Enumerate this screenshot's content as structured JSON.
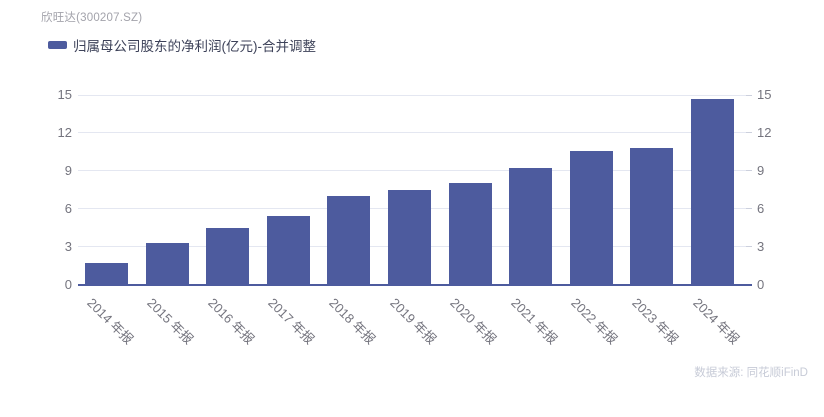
{
  "header": {
    "title": "欣旺达(300207.SZ)"
  },
  "legend": {
    "label": "归属母公司股东的净利润(亿元)-合并调整"
  },
  "footer": {
    "source_note": "数据来源: 同花顺iFinD"
  },
  "chart_data": {
    "type": "bar",
    "title": "欣旺达(300207.SZ)",
    "series_name": "归属母公司股东的净利润(亿元)-合并调整",
    "categories": [
      "2014 年报",
      "2015 年报",
      "2016 年报",
      "2017 年报",
      "2018 年报",
      "2019 年报",
      "2020 年报",
      "2021 年报",
      "2022 年报",
      "2023 年报",
      "2024 年报"
    ],
    "values": [
      1.7,
      3.3,
      4.5,
      5.4,
      7.0,
      7.5,
      8.0,
      9.2,
      10.6,
      10.8,
      14.7
    ],
    "xlabel": "",
    "ylabel": "",
    "ylim": [
      0,
      15
    ],
    "yticks": [
      0,
      3,
      6,
      9,
      12,
      15
    ],
    "y_axis_sides": "both",
    "grid": true,
    "legend_position": "top-left",
    "x_label_rotation_deg": 45,
    "bar_color": "#4d5b9e",
    "source_note": "数据来源: 同花顺iFinD"
  },
  "colors": {
    "bar": "#4d5b9e",
    "axis_label": "#74747e",
    "gridline": "#e4e7f1",
    "baseline": "#4d5b9e",
    "title": "#a3a3ab",
    "legend_text": "#3d4259",
    "source_note": "#c7cbd7",
    "background": "#ffffff"
  }
}
